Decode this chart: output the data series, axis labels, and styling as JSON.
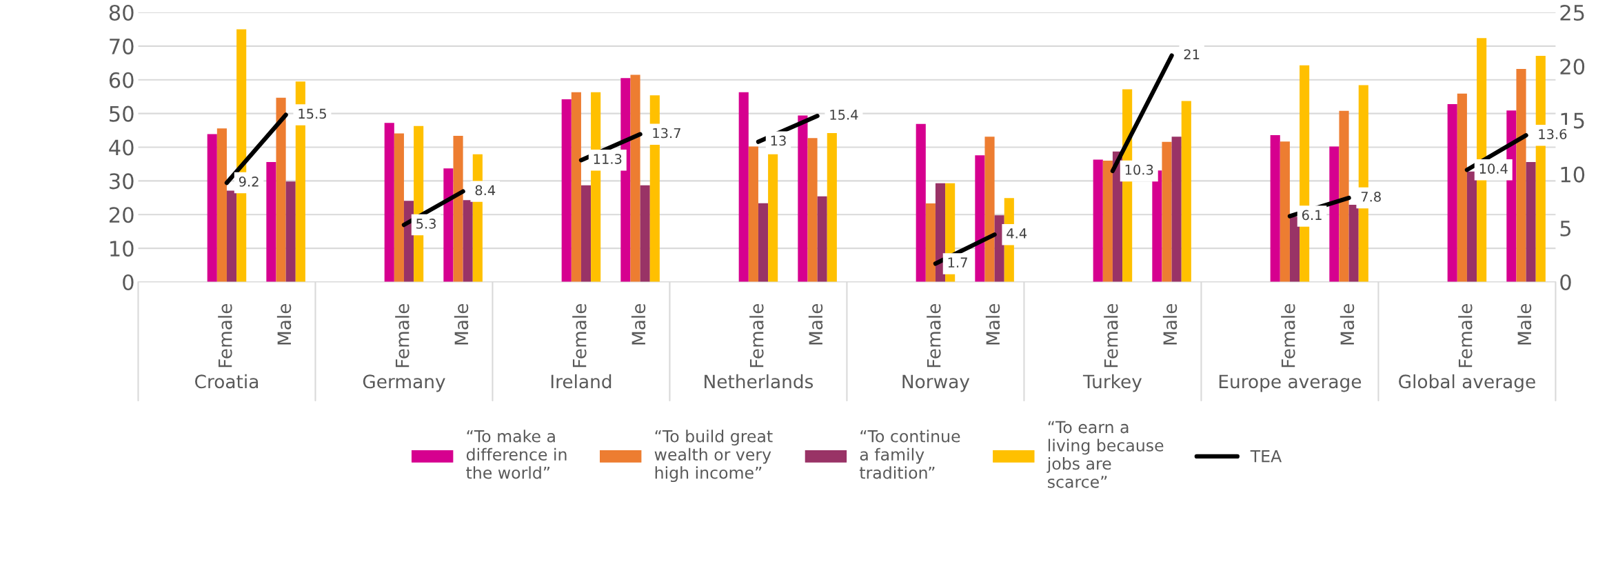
{
  "chart_data": {
    "type": "bar",
    "categories": [
      null,
      "Female",
      "Male",
      null,
      "Female",
      "Male",
      null,
      "Female",
      "Male",
      null,
      "Female",
      "Male",
      null,
      "Female",
      "Male",
      null,
      "Female",
      "Male",
      null,
      "Female",
      "Male",
      null,
      "Female",
      "Male"
    ],
    "annotations": [
      "Croatia",
      "Germany",
      "Ireland",
      "Netherlands",
      "Norway",
      "Turkey",
      "Europe average",
      "Global average"
    ],
    "series": [
      {
        "name": "“To make a\ndifference in\nthe world”",
        "color": "#d6008f",
        "values": [
          null,
          43.9,
          35.6,
          null,
          47.2,
          33.7,
          null,
          54.2,
          60.5,
          null,
          56.3,
          49.4,
          null,
          46.9,
          37.6,
          null,
          36.3,
          33.1,
          null,
          43.6,
          40.2,
          null,
          52.8,
          50.9
        ]
      },
      {
        "name": "“To build great\nwealth or very\nhigh income”",
        "color": "#ed7d31",
        "values": [
          null,
          45.6,
          54.7,
          null,
          44.1,
          43.4,
          null,
          56.3,
          61.5,
          null,
          40.2,
          42.7,
          null,
          23.3,
          43.1,
          null,
          36.0,
          41.6,
          null,
          41.7,
          50.8,
          null,
          55.9,
          63.2
        ]
      },
      {
        "name": "“To continue\na family\ntradition”",
        "color": "#993366",
        "values": [
          null,
          27.1,
          29.8,
          null,
          24.1,
          24.3,
          null,
          28.7,
          28.7,
          null,
          23.4,
          25.4,
          null,
          29.3,
          19.8,
          null,
          38.7,
          43.1,
          null,
          19.4,
          22.9,
          null,
          32.8,
          35.6
        ]
      },
      {
        "name": "“To earn a\nliving because\njobs are\nscarce”",
        "color": "#ffc000",
        "values": [
          null,
          75.0,
          59.5,
          null,
          46.3,
          37.9,
          null,
          56.3,
          55.4,
          null,
          37.9,
          44.2,
          null,
          29.3,
          24.9,
          null,
          57.2,
          53.7,
          null,
          64.3,
          58.4,
          null,
          72.4,
          67.1
        ]
      },
      {
        "name": "TEA",
        "type": "line",
        "axis": "y2",
        "color": "#000000",
        "values": [
          null,
          9.2,
          15.5,
          null,
          5.3,
          8.4,
          null,
          11.3,
          13.7,
          null,
          13,
          15.4,
          null,
          1.7,
          4.4,
          null,
          10.3,
          21,
          null,
          6.1,
          7.8,
          null,
          10.4,
          13.6
        ],
        "value_labels": [
          null,
          "9.2",
          "15.5",
          null,
          "5.3",
          "8.4",
          null,
          "11.3",
          "13.7",
          null,
          "13",
          "15.4",
          null,
          "1.7",
          "4.4",
          null,
          "10.3",
          "21",
          null,
          "6.1",
          "7.8",
          null,
          "10.4",
          "13.6"
        ]
      }
    ],
    "ylim": [
      0,
      80
    ],
    "yticks": [
      0,
      10,
      20,
      30,
      40,
      50,
      60,
      70,
      80
    ],
    "y2lim": [
      0,
      25
    ],
    "y2ticks": [
      0,
      5,
      10,
      15,
      20,
      25
    ],
    "grid": "y",
    "legend": "bottom"
  }
}
